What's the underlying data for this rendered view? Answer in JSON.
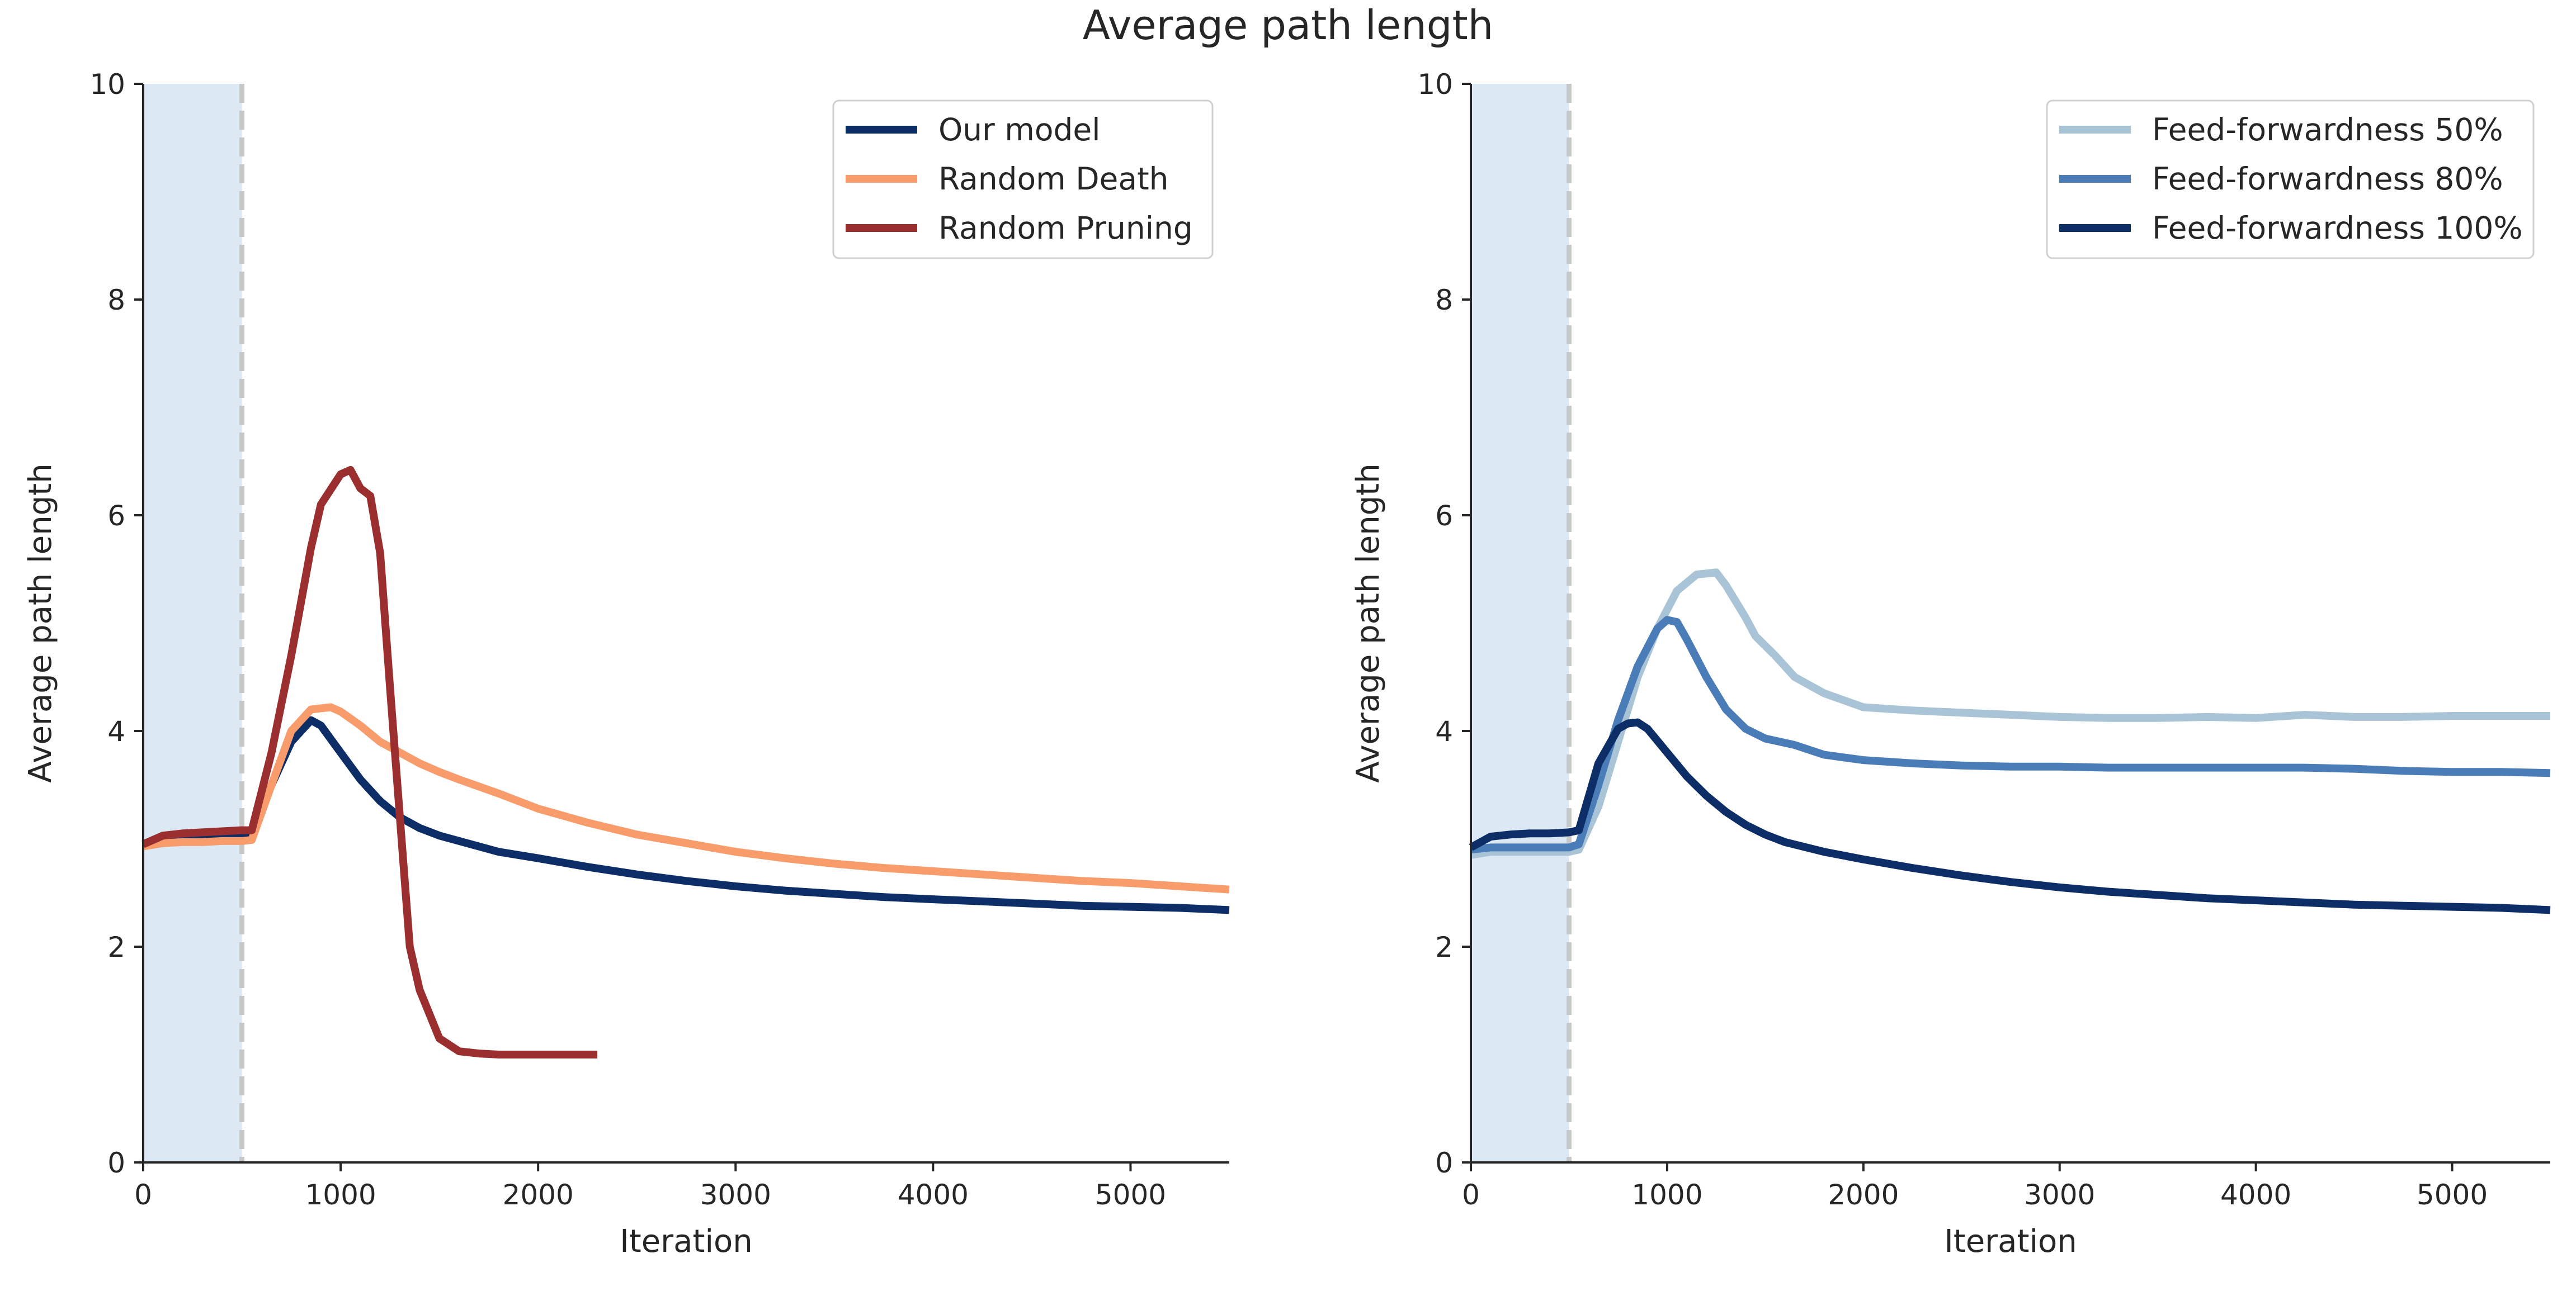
{
  "figure": {
    "title": "Average path length"
  },
  "chart_data": [
    {
      "type": "line",
      "xlabel": "Iteration",
      "ylabel": "Average path length",
      "xlim": [
        0,
        5500
      ],
      "ylim": [
        0,
        10
      ],
      "xticks": [
        0,
        1000,
        2000,
        3000,
        4000,
        5000
      ],
      "yticks": [
        0,
        2,
        4,
        6,
        8,
        10
      ],
      "shaded_region": {
        "x0": 0,
        "x1": 500,
        "color": "#dce8f3"
      },
      "vline": {
        "x": 500,
        "color": "#c8c8c8",
        "style": "dashed"
      },
      "legend_position": "top-right",
      "series": [
        {
          "name": "Our model",
          "color": "#0c2d66",
          "x": [
            0,
            100,
            200,
            300,
            400,
            500,
            550,
            650,
            750,
            850,
            900,
            1000,
            1100,
            1200,
            1300,
            1400,
            1500,
            1600,
            1800,
            2000,
            2250,
            2500,
            2750,
            3000,
            3250,
            3500,
            3750,
            4000,
            4250,
            4500,
            4750,
            5000,
            5250,
            5500
          ],
          "y": [
            2.95,
            3.0,
            3.02,
            3.02,
            3.03,
            3.03,
            3.05,
            3.5,
            3.9,
            4.1,
            4.05,
            3.8,
            3.55,
            3.35,
            3.2,
            3.1,
            3.03,
            2.98,
            2.88,
            2.82,
            2.74,
            2.67,
            2.61,
            2.56,
            2.52,
            2.49,
            2.46,
            2.44,
            2.42,
            2.4,
            2.38,
            2.37,
            2.36,
            2.34
          ]
        },
        {
          "name": "Random Death",
          "color": "#f89c6c",
          "x": [
            0,
            100,
            200,
            300,
            400,
            500,
            550,
            650,
            750,
            850,
            950,
            1000,
            1100,
            1200,
            1300,
            1400,
            1500,
            1600,
            1800,
            2000,
            2250,
            2500,
            2750,
            3000,
            3250,
            3500,
            3750,
            4000,
            4250,
            4500,
            4750,
            5000,
            5250,
            5500
          ],
          "y": [
            2.93,
            2.96,
            2.97,
            2.97,
            2.98,
            2.98,
            2.99,
            3.5,
            4.0,
            4.2,
            4.22,
            4.18,
            4.05,
            3.9,
            3.8,
            3.7,
            3.62,
            3.55,
            3.42,
            3.28,
            3.15,
            3.04,
            2.96,
            2.88,
            2.82,
            2.77,
            2.73,
            2.7,
            2.67,
            2.64,
            2.61,
            2.59,
            2.56,
            2.53
          ]
        },
        {
          "name": "Random Pruning",
          "color": "#9b2f2f",
          "x": [
            0,
            100,
            200,
            300,
            400,
            500,
            550,
            650,
            750,
            850,
            900,
            1000,
            1050,
            1100,
            1150,
            1200,
            1250,
            1300,
            1350,
            1400,
            1500,
            1600,
            1700,
            1800,
            2000,
            2300
          ],
          "y": [
            2.95,
            3.03,
            3.05,
            3.06,
            3.07,
            3.08,
            3.08,
            3.8,
            4.7,
            5.7,
            6.1,
            6.38,
            6.42,
            6.25,
            6.18,
            5.65,
            4.4,
            3.2,
            2.0,
            1.6,
            1.15,
            1.03,
            1.01,
            1.0,
            1.0,
            1.0
          ]
        }
      ]
    },
    {
      "type": "line",
      "xlabel": "Iteration",
      "ylabel": "Average path length",
      "xlim": [
        0,
        5500
      ],
      "ylim": [
        0,
        10
      ],
      "xticks": [
        0,
        1000,
        2000,
        3000,
        4000,
        5000
      ],
      "yticks": [
        0,
        2,
        4,
        6,
        8,
        10
      ],
      "shaded_region": {
        "x0": 0,
        "x1": 500,
        "color": "#dce8f3"
      },
      "vline": {
        "x": 500,
        "color": "#c8c8c8",
        "style": "dashed"
      },
      "legend_position": "top-right",
      "series": [
        {
          "name": "Feed-forwardness 50%",
          "color": "#a9c4d6",
          "x": [
            0,
            100,
            200,
            300,
            400,
            500,
            550,
            650,
            750,
            850,
            950,
            1050,
            1150,
            1250,
            1300,
            1400,
            1450,
            1550,
            1650,
            1800,
            2000,
            2250,
            2500,
            2750,
            3000,
            3250,
            3500,
            3750,
            4000,
            4250,
            4500,
            4750,
            5000,
            5250,
            5500
          ],
          "y": [
            2.85,
            2.88,
            2.88,
            2.88,
            2.88,
            2.88,
            2.9,
            3.3,
            3.9,
            4.5,
            4.95,
            5.3,
            5.45,
            5.47,
            5.35,
            5.05,
            4.88,
            4.7,
            4.5,
            4.35,
            4.22,
            4.19,
            4.17,
            4.15,
            4.13,
            4.12,
            4.12,
            4.13,
            4.12,
            4.15,
            4.13,
            4.13,
            4.14,
            4.14,
            4.14
          ]
        },
        {
          "name": "Feed-forwardness 80%",
          "color": "#4a7cb8",
          "x": [
            0,
            100,
            200,
            300,
            400,
            500,
            550,
            650,
            750,
            850,
            950,
            1000,
            1050,
            1100,
            1200,
            1300,
            1400,
            1500,
            1650,
            1800,
            2000,
            2250,
            2500,
            2750,
            3000,
            3250,
            3500,
            3750,
            4000,
            4250,
            4500,
            4750,
            5000,
            5250,
            5500
          ],
          "y": [
            2.9,
            2.92,
            2.92,
            2.92,
            2.92,
            2.92,
            2.95,
            3.5,
            4.1,
            4.6,
            4.95,
            5.03,
            5.01,
            4.85,
            4.5,
            4.2,
            4.02,
            3.93,
            3.87,
            3.78,
            3.73,
            3.7,
            3.68,
            3.67,
            3.67,
            3.66,
            3.66,
            3.66,
            3.66,
            3.66,
            3.65,
            3.63,
            3.62,
            3.62,
            3.61
          ]
        },
        {
          "name": "Feed-forwardness 100%",
          "color": "#0c2d66",
          "x": [
            0,
            100,
            200,
            300,
            400,
            500,
            550,
            650,
            750,
            800,
            850,
            900,
            1000,
            1100,
            1200,
            1300,
            1400,
            1500,
            1600,
            1800,
            2000,
            2250,
            2500,
            2750,
            3000,
            3250,
            3500,
            3750,
            4000,
            4250,
            4500,
            4750,
            5000,
            5250,
            5500
          ],
          "y": [
            2.92,
            3.02,
            3.04,
            3.05,
            3.05,
            3.06,
            3.08,
            3.7,
            4.02,
            4.07,
            4.08,
            4.02,
            3.8,
            3.58,
            3.4,
            3.25,
            3.13,
            3.04,
            2.97,
            2.88,
            2.81,
            2.73,
            2.66,
            2.6,
            2.55,
            2.51,
            2.48,
            2.45,
            2.43,
            2.41,
            2.39,
            2.38,
            2.37,
            2.36,
            2.34
          ]
        }
      ]
    }
  ]
}
